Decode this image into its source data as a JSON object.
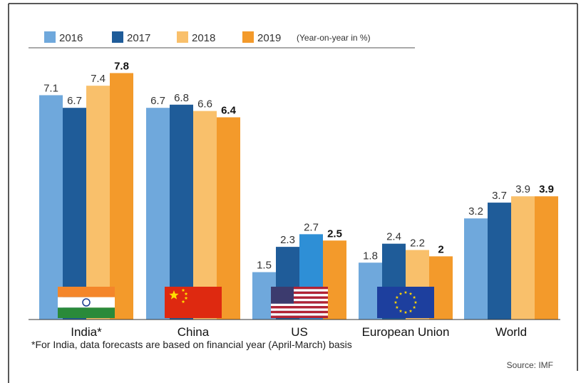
{
  "chart_data": {
    "type": "bar",
    "title": "",
    "xlabel": "",
    "ylabel": "",
    "note": "(Year-on-year in %)",
    "categories": [
      "India*",
      "China",
      "US",
      "European Union",
      "World"
    ],
    "series": [
      {
        "name": "2016",
        "color": "#6fa8dc",
        "values": [
          7.1,
          6.7,
          1.5,
          1.8,
          3.2
        ]
      },
      {
        "name": "2017",
        "color": "#1f5c99",
        "values": [
          6.7,
          6.8,
          2.3,
          2.4,
          3.7
        ]
      },
      {
        "name": "2018",
        "color": "#f9c06b",
        "values": [
          7.4,
          6.6,
          2.7,
          2.2,
          3.9
        ]
      },
      {
        "name": "2019",
        "color": "#f39a2b",
        "values": [
          7.8,
          6.4,
          2.5,
          2,
          3.9
        ]
      }
    ],
    "us_2018_color": "#2e8fd6",
    "ylim": [
      0,
      8
    ],
    "grid": false,
    "legend": "top-left",
    "flags": [
      "india-flag",
      "china-flag",
      "us-flag",
      "eu-flag",
      null
    ],
    "footnote": "*For India, data forecasts are based on financial year (April-March) basis",
    "source": "Source: IMF"
  }
}
